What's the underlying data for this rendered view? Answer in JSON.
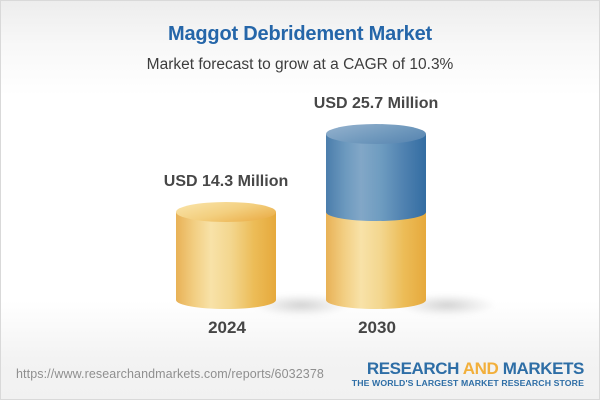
{
  "header": {
    "title": "Maggot Debridement Market",
    "subtitle": "Market forecast to grow at a CAGR of 10.3%"
  },
  "chart_data": {
    "type": "bar",
    "subtype": "3d-cylinder",
    "categories": [
      "2024",
      "2030"
    ],
    "values": [
      14.3,
      25.7
    ],
    "unit": "USD Million",
    "value_labels": [
      "USD 14.3 Million",
      "USD 25.7 Million"
    ],
    "cagr_percent": 10.3,
    "title": "Maggot Debridement Market",
    "subtitle": "Market forecast to grow at a CAGR of 10.3%",
    "legend": "none",
    "grid": false,
    "axis_labels": "none",
    "colors": {
      "base_segment": "#F0C575",
      "growth_segment": "#5E8DB8",
      "title_text": "#2566A9",
      "label_text": "#474747"
    },
    "notes": "2030 bar is stacked: yellow base equals 2024 value, blue top equals growth to 25.7"
  },
  "footer": {
    "url": "https://www.researchandmarkets.com/reports/6032378",
    "logo": {
      "research": "RESEARCH",
      "and": "AND",
      "markets": "MARKETS",
      "tagline": "THE WORLD'S LARGEST MARKET RESEARCH STORE"
    }
  }
}
